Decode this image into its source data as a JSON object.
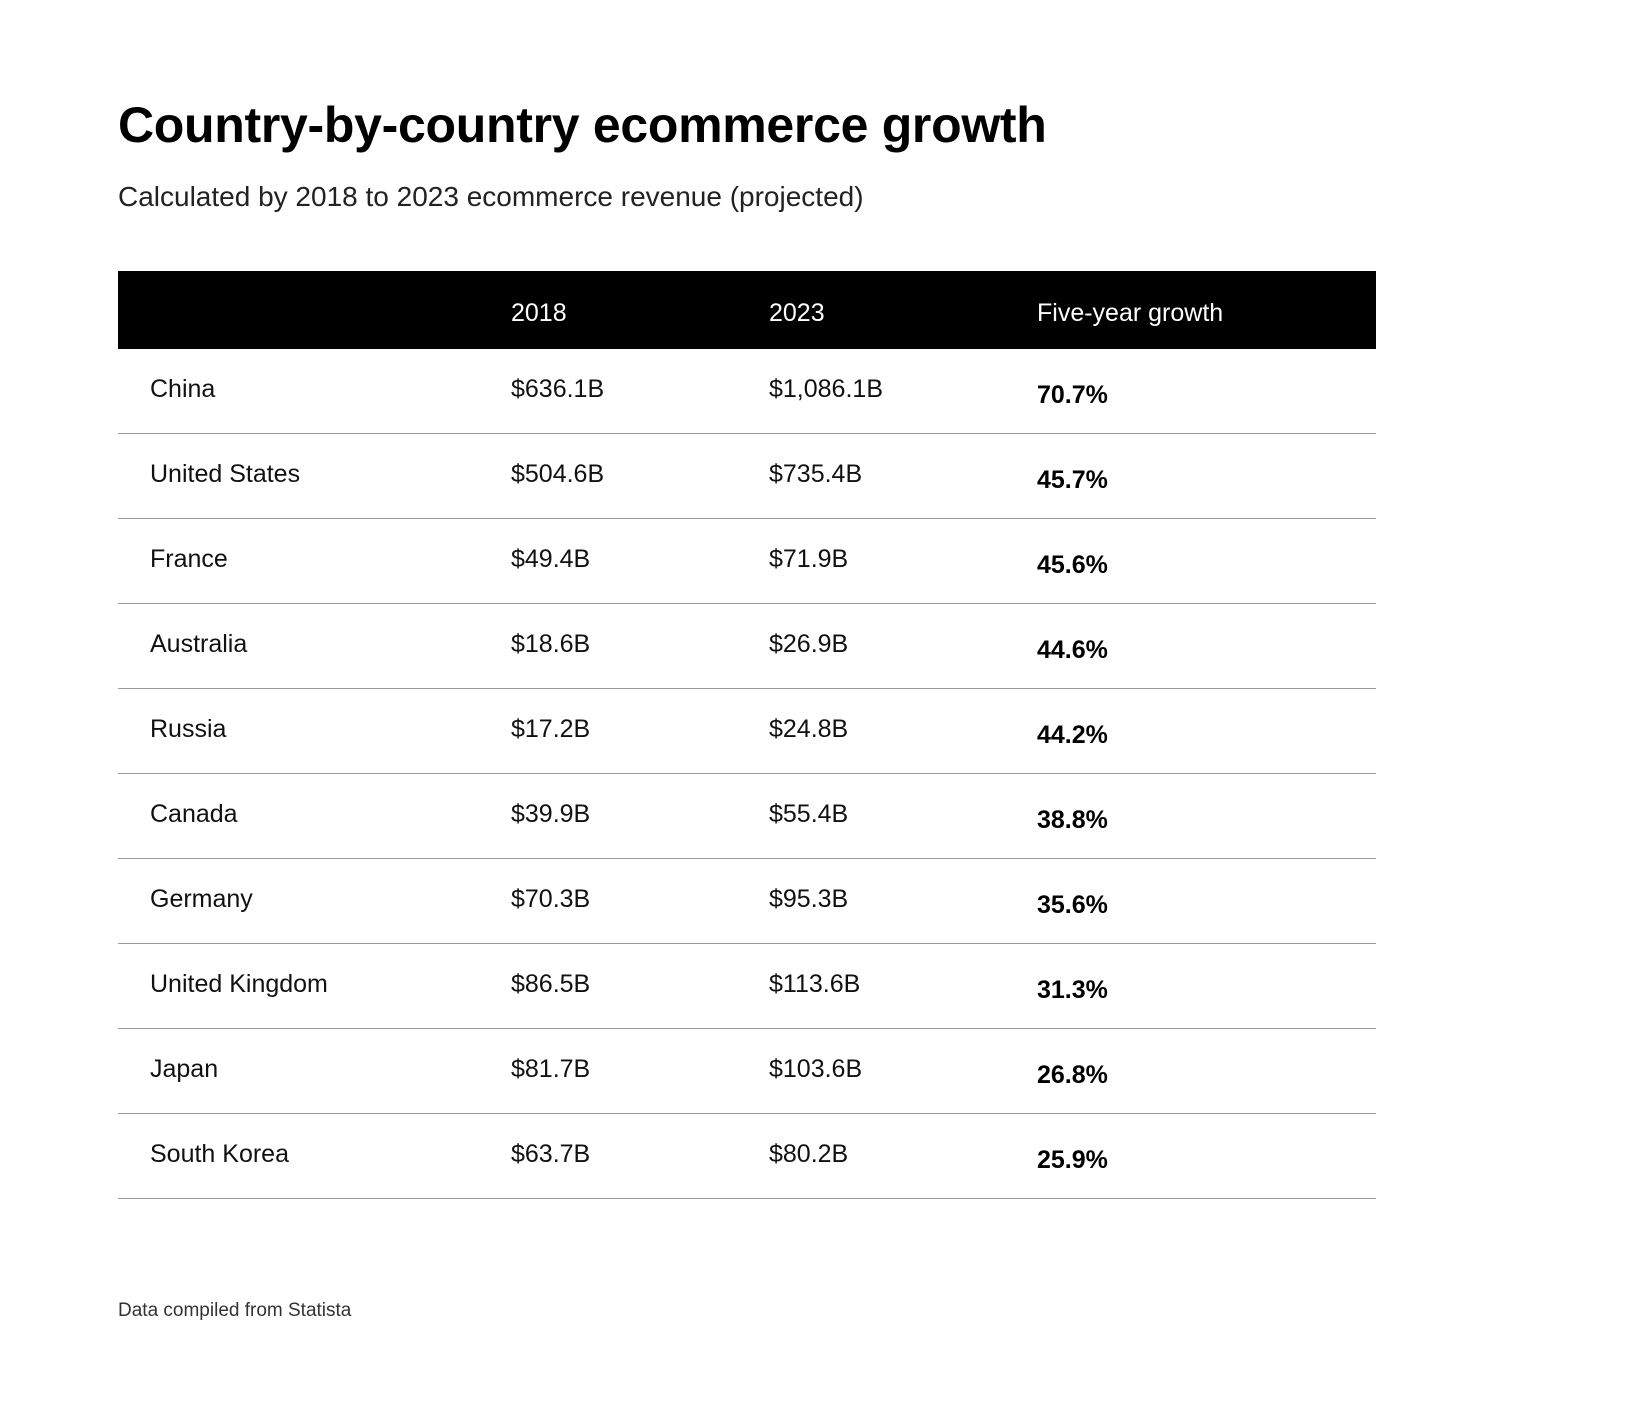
{
  "chart_data": {
    "type": "table",
    "title": "Country-by-country ecommerce growth",
    "subtitle": "Calculated by 2018 to 2023 ecommerce revenue (projected)",
    "columns": [
      "",
      "2018",
      "2023",
      "Five-year growth"
    ],
    "rows": [
      {
        "country": "China",
        "y2018": "$636.1B",
        "y2023": "$1,086.1B",
        "growth": "70.7%"
      },
      {
        "country": "United States",
        "y2018": "$504.6B",
        "y2023": "$735.4B",
        "growth": "45.7%"
      },
      {
        "country": "France",
        "y2018": "$49.4B",
        "y2023": "$71.9B",
        "growth": "45.6%"
      },
      {
        "country": "Australia",
        "y2018": "$18.6B",
        "y2023": "$26.9B",
        "growth": "44.6%"
      },
      {
        "country": "Russia",
        "y2018": "$17.2B",
        "y2023": "$24.8B",
        "growth": "44.2%"
      },
      {
        "country": "Canada",
        "y2018": "$39.9B",
        "y2023": "$55.4B",
        "growth": "38.8%"
      },
      {
        "country": "Germany",
        "y2018": "$70.3B",
        "y2023": "$95.3B",
        "growth": "35.6%"
      },
      {
        "country": "United Kingdom",
        "y2018": "$86.5B",
        "y2023": "$113.6B",
        "growth": "31.3%"
      },
      {
        "country": "Japan",
        "y2018": "$81.7B",
        "y2023": "$103.6B",
        "growth": "26.8%"
      },
      {
        "country": "South Korea",
        "y2018": "$63.7B",
        "y2023": "$80.2B",
        "growth": "25.9%"
      }
    ],
    "source": "Data compiled from Statista"
  },
  "colors": {
    "header_bg": "#000000",
    "header_text": "#ffffff",
    "divider": "#9a9a9a"
  }
}
